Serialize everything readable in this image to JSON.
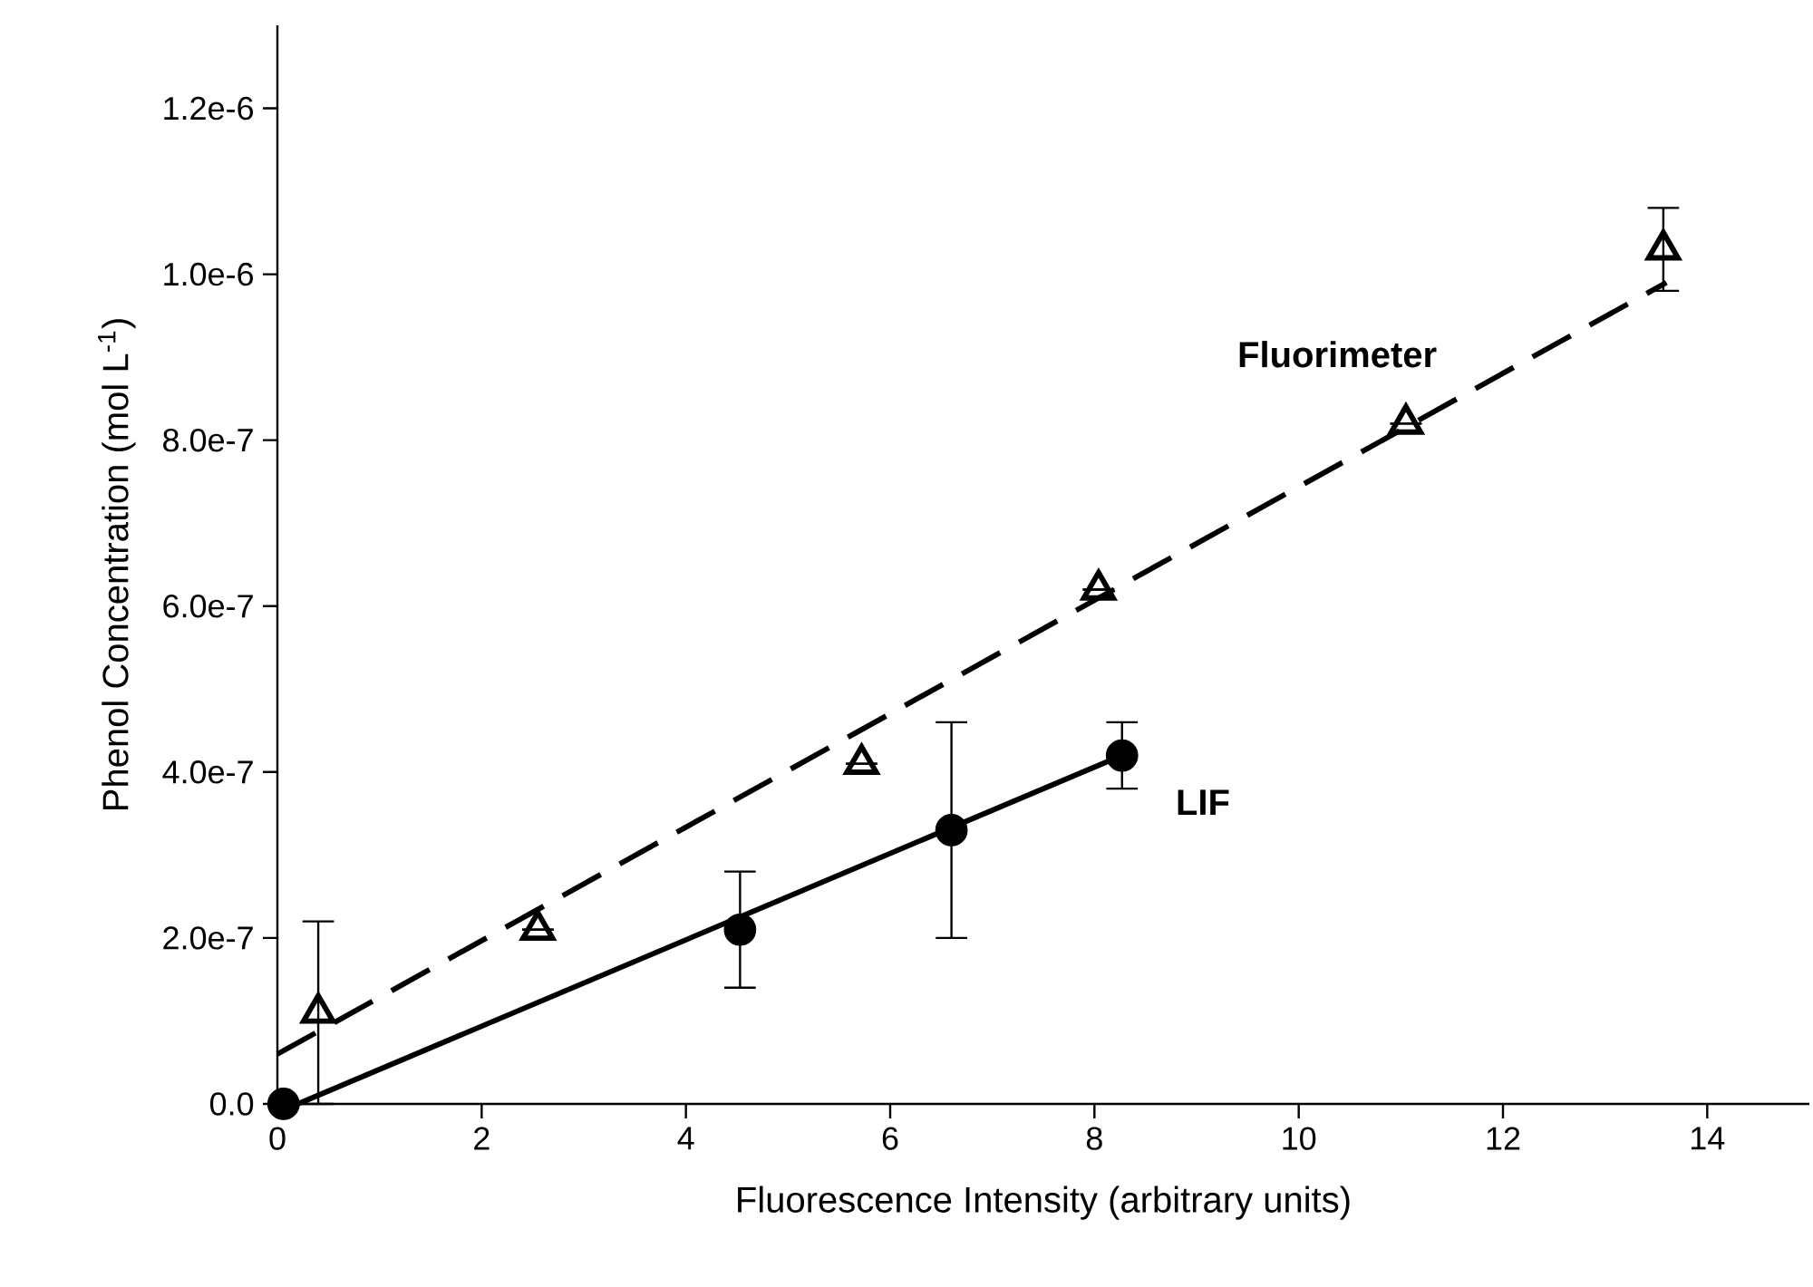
{
  "chart_data": {
    "type": "scatter",
    "xlabel": "Fluorescence Intensity (arbitrary units)",
    "ylabel": "Phenol Concentration (mol L$^{-1}$)",
    "xlim": [
      0,
      15
    ],
    "ylim": [
      0,
      1.3e-06
    ],
    "xticks": [
      0,
      2,
      4,
      6,
      8,
      10,
      12,
      14
    ],
    "yticks": [
      {
        "value": 0,
        "label": "0.0"
      },
      {
        "value": 2e-07,
        "label": "2.0e-7"
      },
      {
        "value": 4e-07,
        "label": "4.0e-7"
      },
      {
        "value": 6e-07,
        "label": "6.0e-7"
      },
      {
        "value": 8e-07,
        "label": "8.0e-7"
      },
      {
        "value": 1e-06,
        "label": "1.0e-6"
      },
      {
        "value": 1.2e-06,
        "label": "1.2e-6"
      }
    ],
    "series": [
      {
        "name": "LIF",
        "marker": "circle",
        "color": "#000000",
        "x": [
          0.06,
          4.53,
          6.6,
          8.27
        ],
        "values": [
          0,
          2.1e-07,
          3.3e-07,
          4.2e-07
        ],
        "errors": [
          null,
          7e-08,
          1.3e-07,
          4e-08
        ]
      },
      {
        "name": "Fluorimeter",
        "marker": "triangle",
        "color": "#000000",
        "x": [
          0.4,
          2.55,
          5.72,
          8.04,
          11.05,
          13.57
        ],
        "values": [
          1.1e-07,
          2.1e-07,
          4.1e-07,
          6.2e-07,
          8.2e-07,
          1.03e-06
        ],
        "errors": [
          [
            0,
            2.2e-07
          ],
          null,
          null,
          null,
          null,
          5e-08
        ]
      },
      {
        "type": "line",
        "line_style": "solid",
        "color": "#000000",
        "x": [
          0.2,
          8.27
        ],
        "values": [
          0,
          4.2e-07
        ]
      },
      {
        "type": "line",
        "line_style": "dashed",
        "color": "#000000",
        "x": [
          0,
          13.6
        ],
        "values": [
          6e-08,
          9.9e-07
        ]
      }
    ]
  }
}
